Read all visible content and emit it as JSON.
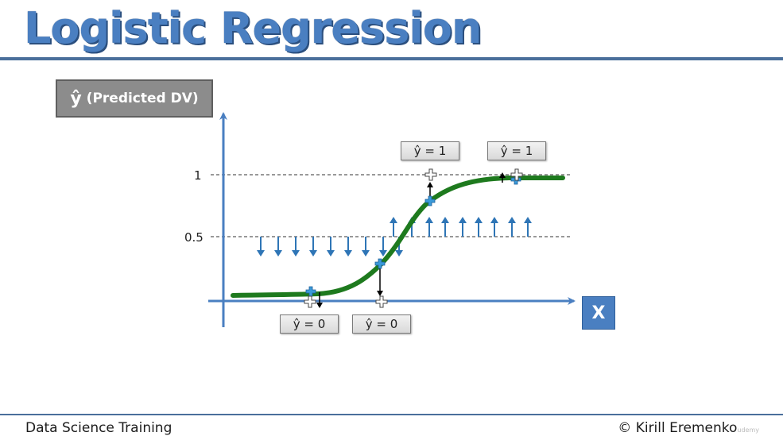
{
  "slide": {
    "title": "Logistic Regression",
    "footer_left": "Data Science Training",
    "footer_right": "© Kirill Eremenko",
    "watermark": "udemy"
  },
  "axes": {
    "y_label_hat": "ŷ",
    "y_label_text": "(Predicted DV)",
    "x_label": "X",
    "y_tick_1": "1",
    "y_tick_05": "0.5"
  },
  "callouts": [
    {
      "text": "ŷ = 1"
    },
    {
      "text": "ŷ = 1"
    },
    {
      "text": "ŷ = 0"
    },
    {
      "text": "ŷ = 0"
    }
  ],
  "colors": {
    "curve": "#1e7a1e",
    "arrows": "#2e75b6",
    "axes": "#4a7fc1",
    "title": "#4a7fc1"
  }
}
